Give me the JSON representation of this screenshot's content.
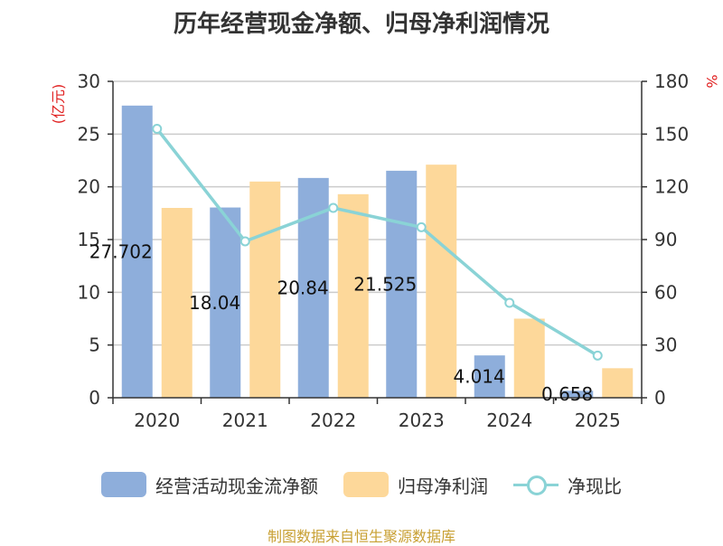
{
  "title": "历年经营现金净额、归母净利润情况",
  "source": "制图数据来自恒生聚源数据库",
  "colors": {
    "bar1": "#8eaedb",
    "bar2": "#fdd89a",
    "line": "#8ad3d6",
    "axisLabel": "#e02020"
  },
  "chart_data": {
    "type": "bar",
    "categories": [
      "2020",
      "2021",
      "2022",
      "2023",
      "2024",
      "2025"
    ],
    "y_left": {
      "label": "(亿元)",
      "min": 0,
      "max": 30,
      "ticks": [
        0,
        5,
        10,
        15,
        20,
        25,
        30
      ]
    },
    "y_right": {
      "label": "%",
      "min": 0,
      "max": 180,
      "ticks": [
        0,
        30,
        60,
        90,
        120,
        150,
        180
      ]
    },
    "grid": true,
    "legend_position": "bottom",
    "series": [
      {
        "name": "经营活动现金流净额",
        "kind": "bar",
        "axis": "left",
        "values": [
          27.702,
          18.04,
          20.84,
          21.525,
          4.014,
          0.658
        ],
        "data_labels": [
          "27.702",
          "18.04",
          "20.84",
          "21.525",
          "4.014",
          "0.658"
        ]
      },
      {
        "name": "归母净利润",
        "kind": "bar",
        "axis": "left",
        "values": [
          18.0,
          20.5,
          19.3,
          22.1,
          7.5,
          2.8
        ]
      },
      {
        "name": "净现比",
        "kind": "line",
        "axis": "right",
        "values": [
          153,
          89,
          108,
          97,
          54,
          24
        ]
      }
    ]
  }
}
